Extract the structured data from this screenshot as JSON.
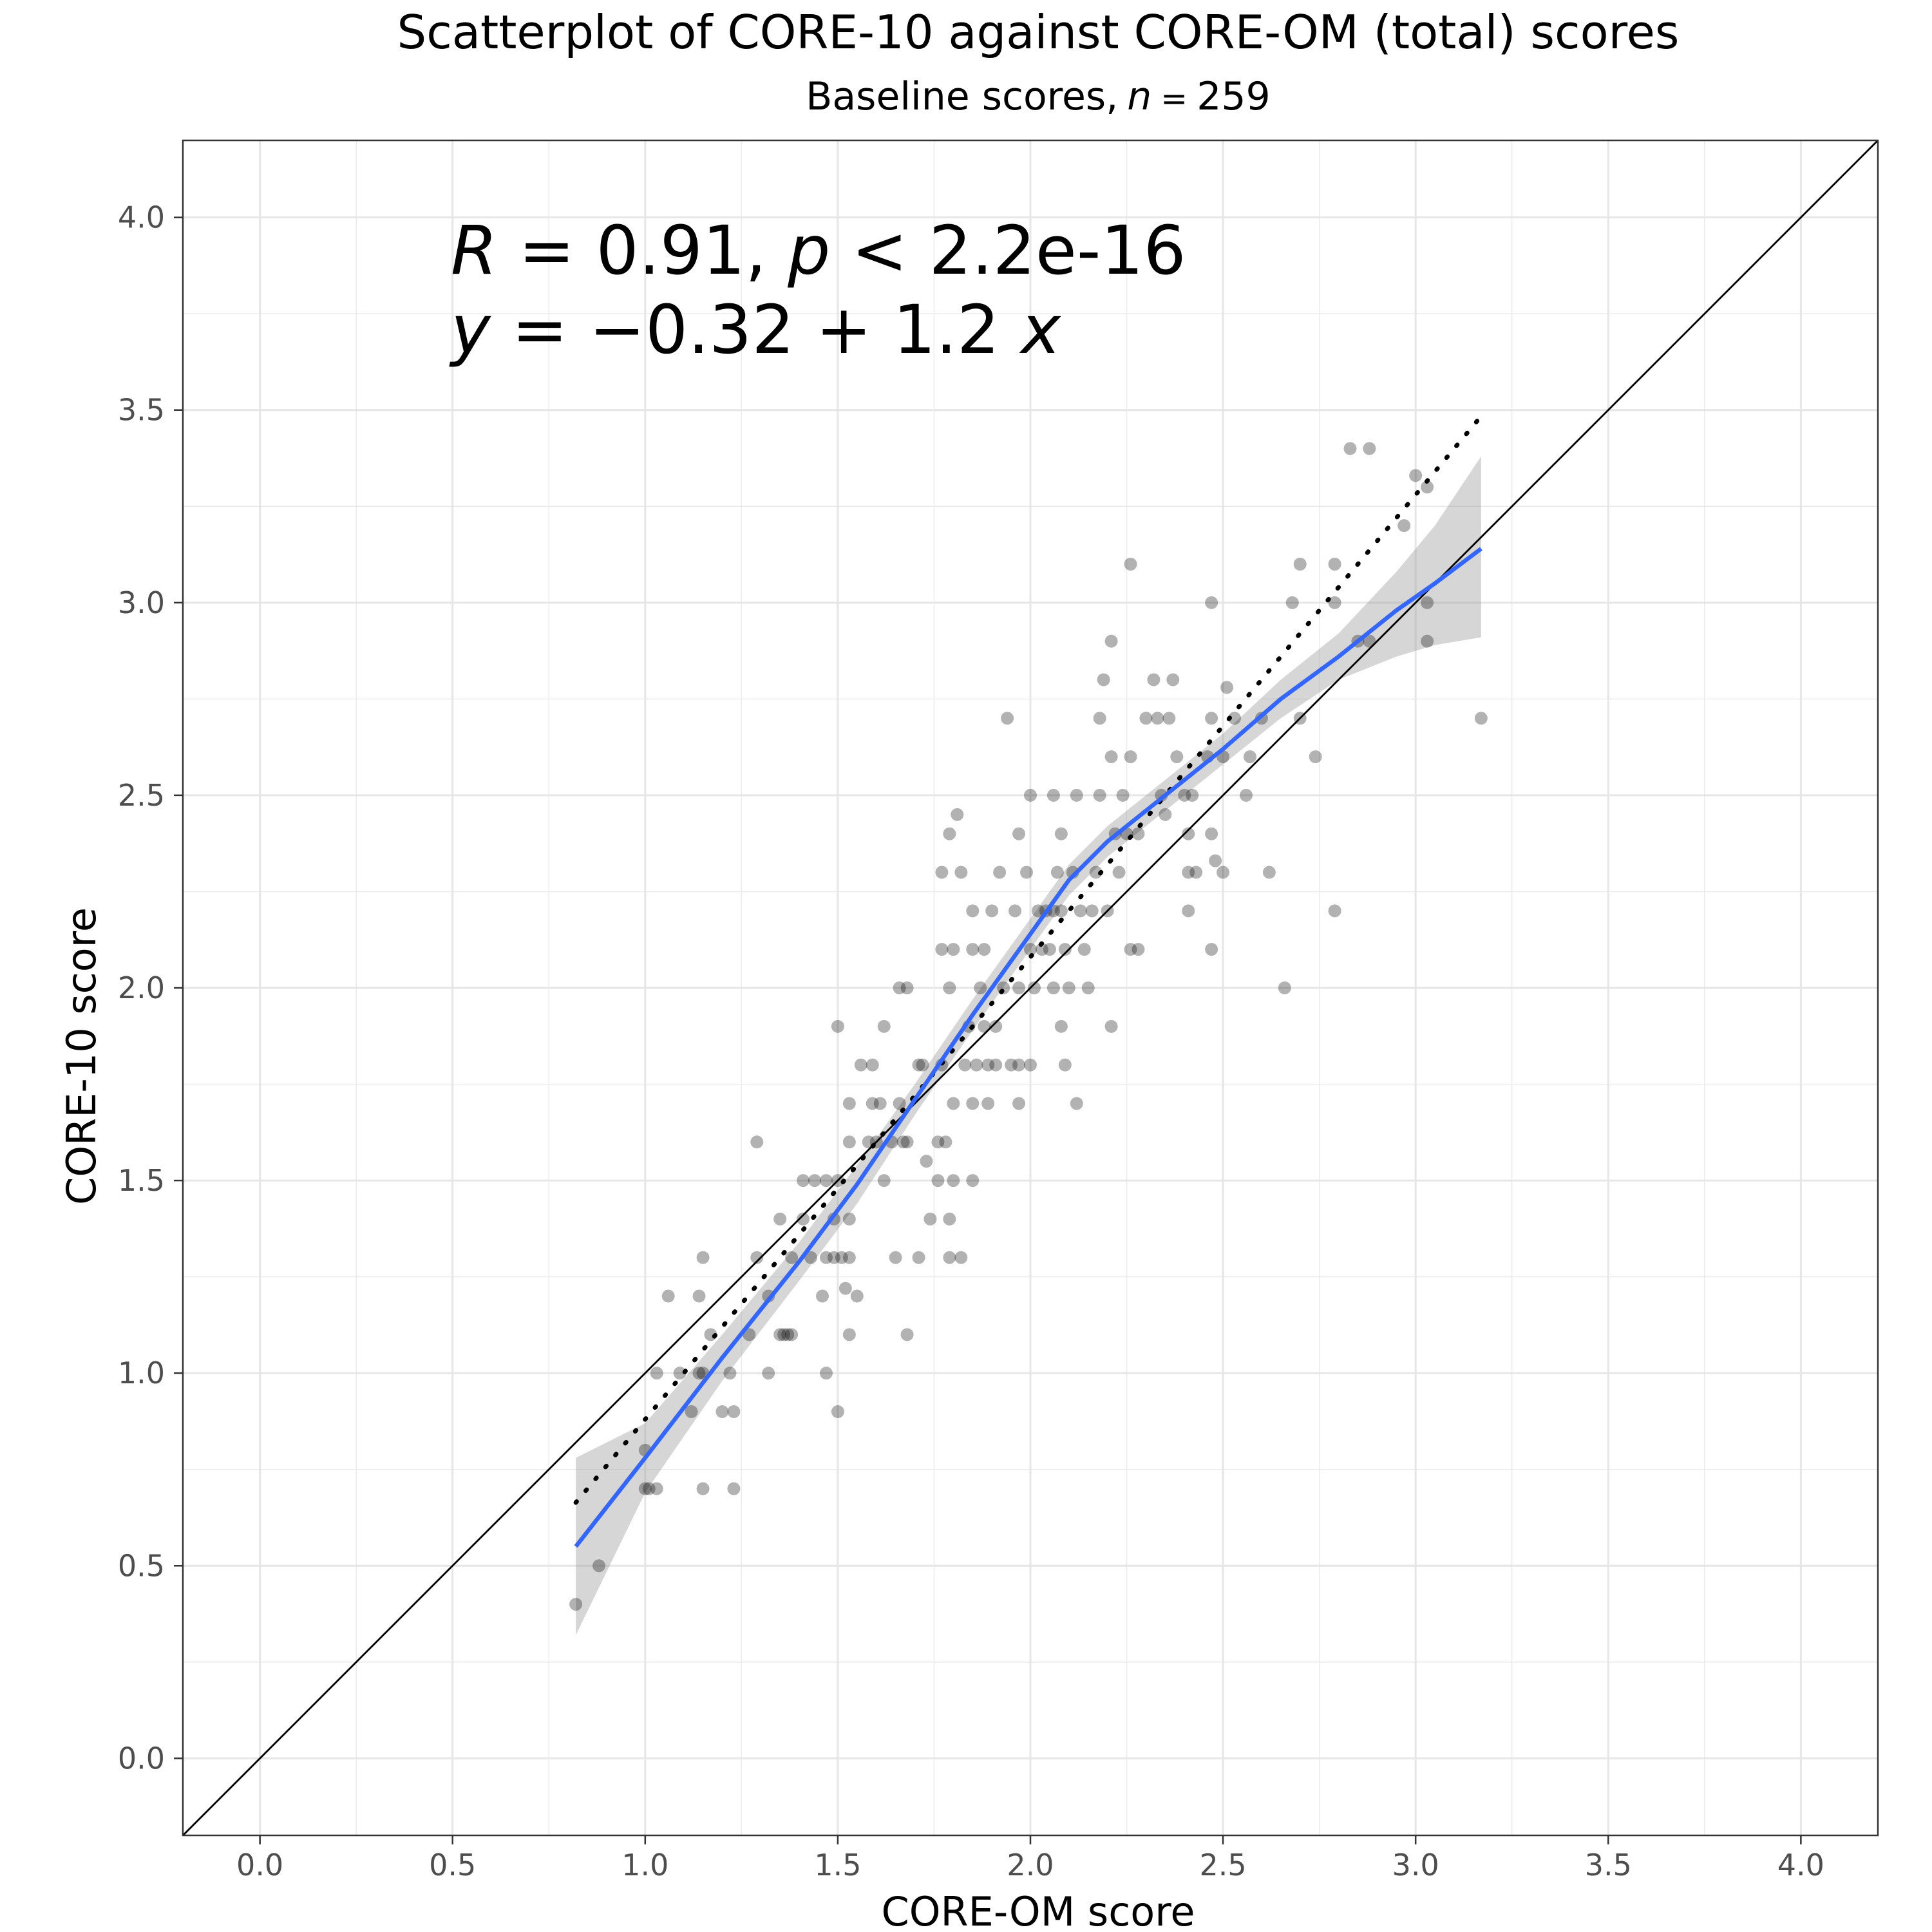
{
  "chart_data": {
    "type": "scatter",
    "title": "Scatterplot of CORE-10 against CORE-OM (total) scores",
    "subtitle": "Baseline scores, n = 259",
    "subtitle_prefix": "Baseline scores,",
    "subtitle_n": "n",
    "subtitle_eq": "=",
    "subtitle_value": "259",
    "xlabel": "CORE-OM score",
    "ylabel": "CORE-10 score",
    "xlim": [
      -0.2,
      4.2
    ],
    "ylim": [
      -0.2,
      4.2
    ],
    "xticks": [
      "0.0",
      "0.5",
      "1.0",
      "1.5",
      "2.0",
      "2.5",
      "3.0",
      "3.5",
      "4.0"
    ],
    "yticks": [
      "0.0",
      "0.5",
      "1.0",
      "1.5",
      "2.0",
      "2.5",
      "3.0",
      "3.5",
      "4.0"
    ],
    "grid": true,
    "annotation": {
      "line1": "R = 0.91, p < 2.2e-16",
      "line1_R": "R",
      "line1_mid": " = 0.91, ",
      "line1_p": "p",
      "line1_end": " < 2.2e-16",
      "line2": "y = −0.32 + 1.2 x",
      "line2_y": "y",
      "line2_mid": " = −0.32 + 1.2 ",
      "line2_x": "x"
    },
    "colors": {
      "points": "#000000",
      "loess_line": "#3366ff",
      "ci_band": "#999999",
      "identity_line": "#000000",
      "regression_line": "#000000"
    },
    "identity_line": {
      "intercept": 0,
      "slope": 1
    },
    "regression_line": {
      "intercept": -0.32,
      "slope": 1.2,
      "x_range": [
        0.82,
        3.17
      ],
      "style": "dotted"
    },
    "loess": {
      "x": [
        0.82,
        1.0,
        1.2,
        1.4,
        1.55,
        1.7,
        1.85,
        2.0,
        2.1,
        2.2,
        2.35,
        2.5,
        2.65,
        2.8,
        2.95,
        3.05,
        3.17
      ],
      "y": [
        0.55,
        0.78,
        1.04,
        1.29,
        1.49,
        1.71,
        1.93,
        2.14,
        2.28,
        2.38,
        2.5,
        2.62,
        2.75,
        2.86,
        2.98,
        3.05,
        3.14
      ],
      "ci_low": [
        0.32,
        0.69,
        0.98,
        1.24,
        1.44,
        1.67,
        1.89,
        2.1,
        2.24,
        2.34,
        2.46,
        2.58,
        2.7,
        2.8,
        2.86,
        2.89,
        2.91
      ],
      "ci_high": [
        0.78,
        0.87,
        1.1,
        1.34,
        1.54,
        1.75,
        1.97,
        2.18,
        2.32,
        2.42,
        2.54,
        2.66,
        2.8,
        2.92,
        3.08,
        3.2,
        3.38
      ]
    },
    "points": [
      [
        0.82,
        0.4
      ],
      [
        0.88,
        0.5
      ],
      [
        1.0,
        0.7
      ],
      [
        1.01,
        0.7
      ],
      [
        1.03,
        0.7
      ],
      [
        1.0,
        0.8
      ],
      [
        1.03,
        1.0
      ],
      [
        1.06,
        1.2
      ],
      [
        1.09,
        1.0
      ],
      [
        1.12,
        0.9
      ],
      [
        1.14,
        1.0
      ],
      [
        1.15,
        1.0
      ],
      [
        1.14,
        1.2
      ],
      [
        1.15,
        1.3
      ],
      [
        1.15,
        0.7
      ],
      [
        1.17,
        1.1
      ],
      [
        1.2,
        0.9
      ],
      [
        1.22,
        1.0
      ],
      [
        1.23,
        0.9
      ],
      [
        1.23,
        0.7
      ],
      [
        1.27,
        1.1
      ],
      [
        1.29,
        1.3
      ],
      [
        1.29,
        1.6
      ],
      [
        1.32,
        1.0
      ],
      [
        1.32,
        1.2
      ],
      [
        1.35,
        1.4
      ],
      [
        1.35,
        1.1
      ],
      [
        1.36,
        1.1
      ],
      [
        1.37,
        1.1
      ],
      [
        1.38,
        1.1
      ],
      [
        1.38,
        1.3
      ],
      [
        1.41,
        1.4
      ],
      [
        1.41,
        1.5
      ],
      [
        1.43,
        1.3
      ],
      [
        1.44,
        1.5
      ],
      [
        1.46,
        1.2
      ],
      [
        1.47,
        1.0
      ],
      [
        1.47,
        1.5
      ],
      [
        1.47,
        1.3
      ],
      [
        1.49,
        1.4
      ],
      [
        1.49,
        1.3
      ],
      [
        1.5,
        0.9
      ],
      [
        1.5,
        1.9
      ],
      [
        1.5,
        1.5
      ],
      [
        1.51,
        1.3
      ],
      [
        1.52,
        1.22
      ],
      [
        1.53,
        1.1
      ],
      [
        1.53,
        1.3
      ],
      [
        1.53,
        1.4
      ],
      [
        1.53,
        1.7
      ],
      [
        1.53,
        1.6
      ],
      [
        1.55,
        1.2
      ],
      [
        1.56,
        1.8
      ],
      [
        1.58,
        1.6
      ],
      [
        1.59,
        1.7
      ],
      [
        1.59,
        1.8
      ],
      [
        1.6,
        1.6
      ],
      [
        1.61,
        1.7
      ],
      [
        1.62,
        1.9
      ],
      [
        1.62,
        1.5
      ],
      [
        1.64,
        1.6
      ],
      [
        1.65,
        1.3
      ],
      [
        1.66,
        1.7
      ],
      [
        1.66,
        2.0
      ],
      [
        1.67,
        1.6
      ],
      [
        1.68,
        1.6
      ],
      [
        1.68,
        2.0
      ],
      [
        1.68,
        1.1
      ],
      [
        1.71,
        1.3
      ],
      [
        1.71,
        1.8
      ],
      [
        1.72,
        1.8
      ],
      [
        1.73,
        1.55
      ],
      [
        1.74,
        1.4
      ],
      [
        1.76,
        1.5
      ],
      [
        1.76,
        1.6
      ],
      [
        1.77,
        1.8
      ],
      [
        1.77,
        2.1
      ],
      [
        1.77,
        2.3
      ],
      [
        1.78,
        1.6
      ],
      [
        1.79,
        2.0
      ],
      [
        1.79,
        1.4
      ],
      [
        1.79,
        1.3
      ],
      [
        1.79,
        2.4
      ],
      [
        1.8,
        2.1
      ],
      [
        1.8,
        1.7
      ],
      [
        1.8,
        1.5
      ],
      [
        1.81,
        2.45
      ],
      [
        1.82,
        1.3
      ],
      [
        1.82,
        2.3
      ],
      [
        1.83,
        1.8
      ],
      [
        1.84,
        1.9
      ],
      [
        1.85,
        2.2
      ],
      [
        1.85,
        2.1
      ],
      [
        1.85,
        1.7
      ],
      [
        1.85,
        1.5
      ],
      [
        1.86,
        1.8
      ],
      [
        1.87,
        2.0
      ],
      [
        1.88,
        1.9
      ],
      [
        1.88,
        2.1
      ],
      [
        1.89,
        1.8
      ],
      [
        1.89,
        1.7
      ],
      [
        1.9,
        2.2
      ],
      [
        1.91,
        1.9
      ],
      [
        1.91,
        1.8
      ],
      [
        1.92,
        2.3
      ],
      [
        1.93,
        2.0
      ],
      [
        1.94,
        2.7
      ],
      [
        1.95,
        1.8
      ],
      [
        1.96,
        2.2
      ],
      [
        1.97,
        2.0
      ],
      [
        1.97,
        2.4
      ],
      [
        1.97,
        1.8
      ],
      [
        1.97,
        1.7
      ],
      [
        1.99,
        2.3
      ],
      [
        2.0,
        2.1
      ],
      [
        2.0,
        2.5
      ],
      [
        2.0,
        1.8
      ],
      [
        2.01,
        2.0
      ],
      [
        2.02,
        2.2
      ],
      [
        2.03,
        2.1
      ],
      [
        2.04,
        2.2
      ],
      [
        2.05,
        2.1
      ],
      [
        2.06,
        2.5
      ],
      [
        2.06,
        2.2
      ],
      [
        2.06,
        2.0
      ],
      [
        2.07,
        2.3
      ],
      [
        2.08,
        1.9
      ],
      [
        2.08,
        2.4
      ],
      [
        2.08,
        2.2
      ],
      [
        2.09,
        2.1
      ],
      [
        2.09,
        1.8
      ],
      [
        2.1,
        2.0
      ],
      [
        2.11,
        2.3
      ],
      [
        2.12,
        2.5
      ],
      [
        2.12,
        1.7
      ],
      [
        2.13,
        2.2
      ],
      [
        2.14,
        2.1
      ],
      [
        2.15,
        2.0
      ],
      [
        2.16,
        2.2
      ],
      [
        2.17,
        2.3
      ],
      [
        2.18,
        2.5
      ],
      [
        2.18,
        2.7
      ],
      [
        2.19,
        2.8
      ],
      [
        2.2,
        2.2
      ],
      [
        2.21,
        1.9
      ],
      [
        2.21,
        2.6
      ],
      [
        2.21,
        2.9
      ],
      [
        2.22,
        2.4
      ],
      [
        2.23,
        2.3
      ],
      [
        2.24,
        2.5
      ],
      [
        2.25,
        2.4
      ],
      [
        2.26,
        2.6
      ],
      [
        2.26,
        3.1
      ],
      [
        2.26,
        2.1
      ],
      [
        2.28,
        2.1
      ],
      [
        2.28,
        2.4
      ],
      [
        2.3,
        2.7
      ],
      [
        2.32,
        2.8
      ],
      [
        2.33,
        2.7
      ],
      [
        2.34,
        2.5
      ],
      [
        2.35,
        2.45
      ],
      [
        2.36,
        2.7
      ],
      [
        2.37,
        2.8
      ],
      [
        2.38,
        2.6
      ],
      [
        2.4,
        2.5
      ],
      [
        2.41,
        2.3
      ],
      [
        2.41,
        2.2
      ],
      [
        2.41,
        2.4
      ],
      [
        2.42,
        2.5
      ],
      [
        2.43,
        2.3
      ],
      [
        2.46,
        2.6
      ],
      [
        2.47,
        2.7
      ],
      [
        2.47,
        2.1
      ],
      [
        2.47,
        2.4
      ],
      [
        2.47,
        3.0
      ],
      [
        2.48,
        2.33
      ],
      [
        2.5,
        2.3
      ],
      [
        2.5,
        2.6
      ],
      [
        2.51,
        2.78
      ],
      [
        2.53,
        2.7
      ],
      [
        2.56,
        2.5
      ],
      [
        2.57,
        2.6
      ],
      [
        2.6,
        2.7
      ],
      [
        2.62,
        2.3
      ],
      [
        2.66,
        2.0
      ],
      [
        2.68,
        3.0
      ],
      [
        2.7,
        3.1
      ],
      [
        2.7,
        2.7
      ],
      [
        2.74,
        2.6
      ],
      [
        2.79,
        2.2
      ],
      [
        2.79,
        3.1
      ],
      [
        2.79,
        3.0
      ],
      [
        2.83,
        3.4
      ],
      [
        2.85,
        2.9
      ],
      [
        2.88,
        3.4
      ],
      [
        2.88,
        2.9
      ],
      [
        2.97,
        3.2
      ],
      [
        3.0,
        3.33
      ],
      [
        3.03,
        3.3
      ],
      [
        3.03,
        3.0
      ],
      [
        3.03,
        2.9
      ],
      [
        3.17,
        2.7
      ]
    ]
  }
}
